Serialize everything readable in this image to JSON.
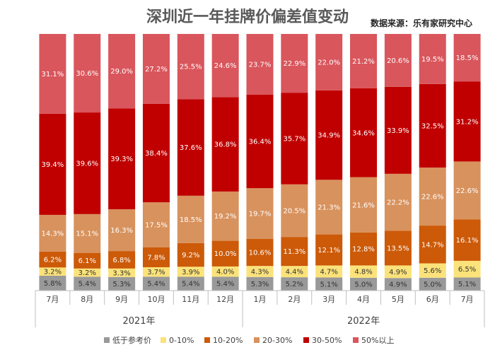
{
  "chart_data": {
    "type": "bar",
    "stacked": true,
    "title": "深圳近一年挂牌价偏差值变动",
    "source": "数据来源：乐有家研究中心",
    "categories": [
      "7月",
      "8月",
      "9月",
      "10月",
      "11月",
      "12月",
      "1月",
      "2月",
      "3月",
      "4月",
      "5月",
      "6月",
      "7月"
    ],
    "year_groups": [
      {
        "label": "2021年",
        "start": 0,
        "end": 5
      },
      {
        "label": "2022年",
        "start": 6,
        "end": 12
      }
    ],
    "series": [
      {
        "name": "低于参考价",
        "color": "#999999",
        "label_color": "#333333",
        "values": [
          5.8,
          5.4,
          5.3,
          5.4,
          5.4,
          5.4,
          5.3,
          5.2,
          5.1,
          5.0,
          4.9,
          5.0,
          5.1
        ],
        "labels": [
          "5.8%",
          "5.4%",
          "5.3%",
          "5.4%",
          "5.4%",
          "5.4%",
          "5.3%",
          "5.2%",
          "5.1%",
          "5.0%",
          "4.9%",
          "5.0%",
          "5.1%"
        ]
      },
      {
        "name": "0-10%",
        "color": "#fbe27a",
        "label_color": "#333333",
        "values": [
          3.2,
          3.2,
          3.3,
          3.7,
          3.9,
          4.0,
          4.3,
          4.4,
          4.7,
          4.8,
          4.9,
          5.6,
          6.5
        ],
        "labels": [
          "3.2%",
          "3.2%",
          "3.3%",
          "3.7%",
          "3.9%",
          "4.0%",
          "4.3%",
          "4.4%",
          "4.7%",
          "4.8%",
          "4.9%",
          "5.6%",
          "6.5%"
        ]
      },
      {
        "name": "10-20%",
        "color": "#cc5a08",
        "label_color": "#ffffff",
        "values": [
          6.2,
          6.1,
          6.8,
          7.8,
          9.2,
          10.0,
          10.6,
          11.3,
          12.1,
          12.8,
          13.5,
          14.7,
          16.1
        ],
        "labels": [
          "6.2%",
          "6.1%",
          "6.8%",
          "7.8%",
          "9.2%",
          "10.0%",
          "10.6%",
          "11.3%",
          "12.1%",
          "12.8%",
          "13.5%",
          "14.7%",
          "16.1%"
        ]
      },
      {
        "name": "20-30%",
        "color": "#d8925d",
        "label_color": "#ffffff",
        "values": [
          14.3,
          15.1,
          16.3,
          17.5,
          18.5,
          19.2,
          19.7,
          20.5,
          21.3,
          21.6,
          22.2,
          22.6,
          22.6
        ],
        "labels": [
          "14.3%",
          "15.1%",
          "16.3%",
          "17.5%",
          "18.5%",
          "19.2%",
          "19.7%",
          "20.5%",
          "21.3%",
          "21.6%",
          "22.2%",
          "22.6%",
          "22.6%"
        ]
      },
      {
        "name": "30-50%",
        "color": "#c00000",
        "label_color": "#ffffff",
        "values": [
          39.4,
          39.6,
          39.3,
          38.4,
          37.6,
          36.8,
          36.4,
          35.7,
          34.9,
          34.6,
          33.9,
          32.5,
          31.2
        ],
        "labels": [
          "39.4%",
          "39.6%",
          "39.3%",
          "38.4%",
          "37.6%",
          "36.8%",
          "36.4%",
          "35.7%",
          "34.9%",
          "34.6%",
          "33.9%",
          "32.5%",
          "31.2%"
        ]
      },
      {
        "name": "50%以上",
        "color": "#d9565c",
        "label_color": "#ffffff",
        "values": [
          31.1,
          30.6,
          29.0,
          27.2,
          25.5,
          24.6,
          23.7,
          22.9,
          22.0,
          21.2,
          20.6,
          19.5,
          18.5
        ],
        "labels": [
          "31.1%",
          "30.6%",
          "29.0%",
          "27.2%",
          "25.5%",
          "24.6%",
          "23.7%",
          "22.9%",
          "22.0%",
          "21.2%",
          "20.6%",
          "19.5%",
          "18.5%"
        ]
      }
    ],
    "ylim": [
      0,
      100
    ],
    "legend_position": "bottom"
  }
}
